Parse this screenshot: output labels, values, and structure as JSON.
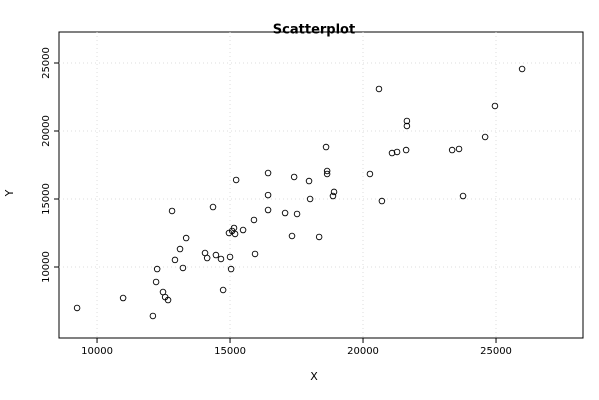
{
  "chart_data": {
    "type": "scatter",
    "title": "Scatterplot",
    "x_label": "X",
    "y_label": "Y",
    "x": [
      9250,
      10980,
      12100,
      12220,
      12260,
      12480,
      12560,
      12670,
      12820,
      12930,
      13120,
      13230,
      13350,
      14060,
      14140,
      14360,
      14470,
      14660,
      14740,
      15000,
      15040,
      14960,
      15080,
      15150,
      15190,
      15230,
      15490,
      15900,
      15940,
      16430,
      16430,
      16430,
      17070,
      17330,
      17410,
      17520,
      17970,
      18010,
      18350,
      18610,
      18650,
      18650,
      18870,
      18910,
      20260,
      20600,
      20710,
      21090,
      21280,
      21620,
      21650,
      21650,
      23350,
      23610,
      23760,
      24590,
      24960,
      25980
    ],
    "series": [
      {
        "name": "Y",
        "color": "#000000",
        "values": [
          6990,
          7720,
          6400,
          8900,
          9850,
          8160,
          7790,
          7570,
          14120,
          10520,
          11320,
          9930,
          12130,
          11030,
          10660,
          14410,
          10880,
          10590,
          8310,
          10740,
          9850,
          12500,
          12650,
          12870,
          12430,
          16400,
          12720,
          13460,
          10960,
          14190,
          15290,
          16910,
          13970,
          12280,
          16620,
          13900,
          16320,
          15000,
          12210,
          18820,
          17060,
          16840,
          15220,
          15520,
          16840,
          23090,
          14850,
          18380,
          18460,
          18600,
          20370,
          20740,
          18600,
          18680,
          15220,
          19560,
          21840,
          24560
        ]
      }
    ],
    "xlim": [
      8570,
      28270
    ],
    "ylim": [
      4780,
      27280
    ],
    "xticks": [
      10000,
      15000,
      20000,
      25000
    ],
    "yticks": [
      10000,
      15000,
      20000,
      25000
    ],
    "grid": true
  }
}
